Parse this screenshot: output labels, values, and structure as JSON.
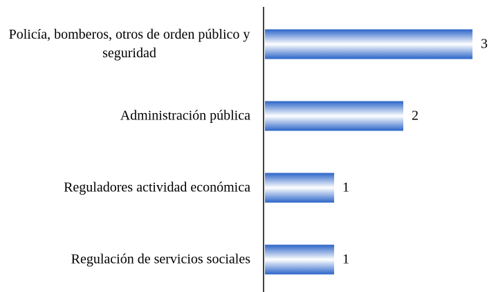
{
  "chart_data": {
    "type": "bar",
    "orientation": "horizontal",
    "categories": [
      "Policía, bomberos, otros de orden público y seguridad",
      "Administración pública",
      "Reguladores actividad económica",
      "Regulación de servicios sociales"
    ],
    "values": [
      3,
      2,
      1,
      1
    ],
    "color": "#2a64c8",
    "xlim": [
      0,
      3
    ]
  }
}
